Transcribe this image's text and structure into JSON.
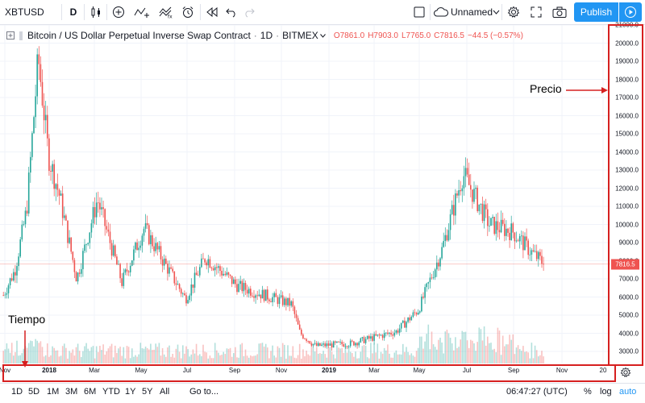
{
  "toolbar": {
    "symbol": "XBTUSD",
    "interval": "D",
    "layout_name": "Unnamed",
    "publish_label": "Publish"
  },
  "legend": {
    "title": "Bitcoin / US Dollar Perpetual Inverse Swap Contract",
    "interval": "1D",
    "exchange": "BITMEX",
    "open": "O7861.0",
    "high": "H7903.0",
    "low": "L7765.0",
    "close": "C7816.5",
    "change": "−44.5 (−0.57%)"
  },
  "price_axis": {
    "labels": [
      "21000.0",
      "20000.0",
      "19000.0",
      "18000.0",
      "17000.0",
      "16000.0",
      "15000.0",
      "14000.0",
      "13000.0",
      "12000.0",
      "11000.0",
      "10000.0",
      "9000.0",
      "8000.0",
      "7000.0",
      "6000.0",
      "5000.0",
      "4000.0",
      "3000.0"
    ],
    "last_price": "7816.5"
  },
  "time_axis": {
    "labels": [
      {
        "text": "Nov",
        "bold": false
      },
      {
        "text": "2018",
        "bold": true
      },
      {
        "text": "Mar",
        "bold": false
      },
      {
        "text": "May",
        "bold": false
      },
      {
        "text": "Jul",
        "bold": false
      },
      {
        "text": "Sep",
        "bold": false
      },
      {
        "text": "Nov",
        "bold": false
      },
      {
        "text": "2019",
        "bold": true
      },
      {
        "text": "Mar",
        "bold": false
      },
      {
        "text": "May",
        "bold": false
      },
      {
        "text": "Jul",
        "bold": false
      },
      {
        "text": "Sep",
        "bold": false
      },
      {
        "text": "Nov",
        "bold": false
      },
      {
        "text": "20",
        "bold": false
      }
    ]
  },
  "bottom_bar": {
    "ranges": [
      "1D",
      "5D",
      "1M",
      "3M",
      "6M",
      "YTD",
      "1Y",
      "5Y",
      "All"
    ],
    "goto": "Go to...",
    "clock": "06:47:27 (UTC)",
    "percent": "%",
    "log": "log",
    "auto": "auto"
  },
  "annotations": {
    "price": "Precio",
    "time": "Tiempo"
  },
  "colors": {
    "up": "#26a69a",
    "down": "#ef5350",
    "accent": "#2196f3",
    "annotation": "#d62020"
  },
  "chart_data": {
    "type": "candlestick",
    "title": "Bitcoin / US Dollar Perpetual Inverse Swap Contract",
    "interval": "1D",
    "ylim": [
      2500,
      21000
    ],
    "series": [
      {
        "name": "XBTUSD",
        "x": [
          "2017-10-30",
          "2017-11-15",
          "2017-12-01",
          "2017-12-17",
          "2017-12-31",
          "2018-01-15",
          "2018-02-06",
          "2018-03-05",
          "2018-04-06",
          "2018-05-05",
          "2018-06-29",
          "2018-07-25",
          "2018-09-05",
          "2018-11-14",
          "2018-11-25",
          "2018-12-15",
          "2019-01-31",
          "2019-03-31",
          "2019-04-30",
          "2019-05-30",
          "2019-06-26",
          "2019-07-31",
          "2019-08-31",
          "2019-09-25",
          "2019-10-10"
        ],
        "values": [
          6100,
          7500,
          10800,
          19200,
          13800,
          11500,
          7000,
          11400,
          6800,
          9800,
          5900,
          8200,
          6600,
          5600,
          4000,
          3300,
          3450,
          4100,
          5300,
          8600,
          12800,
          10000,
          9600,
          8400,
          7816.5
        ]
      }
    ],
    "last_price": 7816.5
  }
}
